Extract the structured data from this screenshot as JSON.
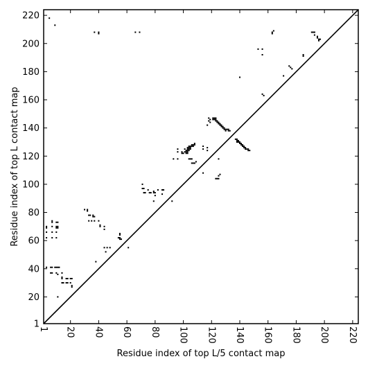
{
  "chart_data": {
    "type": "scatter",
    "title": "",
    "xlabel": "Residue index of top L/5 contact map",
    "ylabel": "Residue index of top L contact map",
    "xlim": [
      1,
      224
    ],
    "ylim": [
      1,
      224
    ],
    "x_ticks": [
      1,
      20,
      40,
      60,
      80,
      100,
      120,
      140,
      160,
      180,
      200,
      220
    ],
    "y_ticks": [
      1,
      20,
      40,
      60,
      80,
      100,
      120,
      140,
      160,
      180,
      200,
      220
    ],
    "x_tick_labels": [
      "1",
      "20",
      "40",
      "60",
      "80",
      "100",
      "120",
      "140",
      "160",
      "180",
      "200",
      "220"
    ],
    "y_tick_labels": [
      "1",
      "20",
      "40",
      "60",
      "80",
      "100",
      "120",
      "140",
      "160",
      "180",
      "200",
      "220"
    ],
    "grid": false,
    "diagonal": true,
    "marker": "square",
    "marker_color": "#000000",
    "upper_triangle": {
      "name": "",
      "points": [
        [
          5,
          218
        ],
        [
          9,
          213
        ],
        [
          37,
          208
        ],
        [
          40,
          208
        ],
        [
          40,
          207
        ],
        [
          66,
          208
        ],
        [
          69,
          208
        ],
        [
          153,
          196
        ],
        [
          156,
          196
        ],
        [
          156,
          192
        ],
        [
          163,
          208
        ],
        [
          163,
          207
        ],
        [
          164,
          209
        ],
        [
          171,
          177
        ],
        [
          175,
          184
        ],
        [
          176,
          183
        ],
        [
          177,
          182
        ],
        [
          185,
          192
        ],
        [
          185,
          191
        ],
        [
          191,
          208
        ],
        [
          192,
          208
        ],
        [
          193,
          208
        ],
        [
          193,
          206
        ],
        [
          195,
          205
        ],
        [
          195,
          204
        ],
        [
          196,
          203
        ],
        [
          197,
          203
        ],
        [
          196,
          202
        ],
        [
          156,
          164
        ],
        [
          157,
          163
        ],
        [
          140,
          176
        ],
        [
          118,
          147
        ],
        [
          118,
          145
        ],
        [
          119,
          146
        ],
        [
          121,
          147
        ],
        [
          121,
          146
        ],
        [
          122,
          147
        ],
        [
          122,
          146
        ],
        [
          123,
          147
        ],
        [
          123,
          146
        ],
        [
          123,
          145
        ],
        [
          124,
          145
        ],
        [
          124,
          144
        ],
        [
          125,
          144
        ],
        [
          125,
          143
        ],
        [
          126,
          143
        ],
        [
          126,
          142
        ],
        [
          127,
          142
        ],
        [
          127,
          141
        ],
        [
          128,
          141
        ],
        [
          128,
          140
        ],
        [
          129,
          140
        ],
        [
          129,
          139
        ],
        [
          130,
          139
        ],
        [
          130,
          138
        ],
        [
          131,
          139
        ],
        [
          132,
          139
        ],
        [
          119,
          144
        ],
        [
          117,
          142
        ],
        [
          132,
          138
        ],
        [
          133,
          138
        ],
        [
          138,
          131
        ],
        [
          139,
          131
        ],
        [
          138,
          130
        ],
        [
          139,
          130
        ],
        [
          140,
          130
        ],
        [
          140,
          129
        ],
        [
          141,
          129
        ],
        [
          141,
          128
        ],
        [
          142,
          128
        ],
        [
          142,
          127
        ],
        [
          143,
          127
        ],
        [
          143,
          126
        ],
        [
          144,
          126
        ],
        [
          144,
          125
        ],
        [
          145,
          125
        ],
        [
          146,
          125
        ],
        [
          147,
          124
        ],
        [
          146,
          124
        ],
        [
          137,
          132
        ],
        [
          138,
          132
        ]
      ]
    },
    "lower_triangle": {
      "name": "",
      "points": [
        [
          3,
          69
        ],
        [
          3,
          70
        ],
        [
          3,
          66
        ],
        [
          3,
          62
        ],
        [
          7,
          74
        ],
        [
          7,
          73
        ],
        [
          7,
          70
        ],
        [
          7,
          66
        ],
        [
          7,
          62
        ],
        [
          10,
          73
        ],
        [
          10,
          70
        ],
        [
          10,
          69
        ],
        [
          10,
          66
        ],
        [
          10,
          62
        ],
        [
          11,
          73
        ],
        [
          11,
          70
        ],
        [
          11,
          69
        ],
        [
          3,
          41
        ],
        [
          6,
          41
        ],
        [
          7,
          41
        ],
        [
          9,
          41
        ],
        [
          10,
          41
        ],
        [
          11,
          41
        ],
        [
          12,
          41
        ],
        [
          6,
          37
        ],
        [
          7,
          37
        ],
        [
          10,
          37
        ],
        [
          11,
          36
        ],
        [
          14,
          37
        ],
        [
          14,
          34
        ],
        [
          14,
          33
        ],
        [
          17,
          33
        ],
        [
          18,
          33
        ],
        [
          20,
          33
        ],
        [
          21,
          33
        ],
        [
          14,
          30
        ],
        [
          15,
          30
        ],
        [
          17,
          30
        ],
        [
          18,
          30
        ],
        [
          20,
          30
        ],
        [
          21,
          27
        ],
        [
          21,
          28
        ],
        [
          11,
          20
        ],
        [
          30,
          82
        ],
        [
          32,
          82
        ],
        [
          32,
          81
        ],
        [
          33,
          78
        ],
        [
          34,
          78
        ],
        [
          36,
          78
        ],
        [
          36,
          77
        ],
        [
          37,
          77
        ],
        [
          33,
          74
        ],
        [
          35,
          74
        ],
        [
          37,
          74
        ],
        [
          40,
          74
        ],
        [
          41,
          71
        ],
        [
          41,
          70
        ],
        [
          44,
          70
        ],
        [
          44,
          68
        ],
        [
          38,
          45
        ],
        [
          44,
          55
        ],
        [
          46,
          55
        ],
        [
          48,
          55
        ],
        [
          45,
          52
        ],
        [
          54,
          62
        ],
        [
          55,
          62
        ],
        [
          55,
          61
        ],
        [
          56,
          61
        ],
        [
          55,
          64
        ],
        [
          55,
          65
        ],
        [
          61,
          55
        ],
        [
          71,
          100
        ],
        [
          71,
          97
        ],
        [
          72,
          97
        ],
        [
          72,
          94
        ],
        [
          73,
          94
        ],
        [
          75,
          96
        ],
        [
          76,
          94
        ],
        [
          77,
          94
        ],
        [
          79,
          95
        ],
        [
          79,
          94
        ],
        [
          80,
          94
        ],
        [
          80,
          92
        ],
        [
          79,
          88
        ],
        [
          82,
          96
        ],
        [
          85,
          96
        ],
        [
          85,
          93
        ],
        [
          86,
          96
        ],
        [
          92,
          88
        ],
        [
          93,
          118
        ],
        [
          96,
          118
        ],
        [
          96,
          125
        ],
        [
          96,
          123
        ],
        [
          99,
          123
        ],
        [
          99,
          122
        ],
        [
          100,
          122
        ],
        [
          101,
          125
        ],
        [
          102,
          124
        ],
        [
          101,
          123
        ],
        [
          102,
          123
        ],
        [
          102,
          122
        ],
        [
          103,
          126
        ],
        [
          103,
          125
        ],
        [
          103,
          124
        ],
        [
          103,
          123
        ],
        [
          103,
          122
        ],
        [
          104,
          127
        ],
        [
          104,
          126
        ],
        [
          104,
          125
        ],
        [
          104,
          124
        ],
        [
          105,
          127
        ],
        [
          105,
          126
        ],
        [
          105,
          125
        ],
        [
          106,
          128
        ],
        [
          106,
          127
        ],
        [
          107,
          128
        ],
        [
          107,
          127
        ],
        [
          108,
          129
        ],
        [
          108,
          128
        ],
        [
          104,
          118
        ],
        [
          105,
          118
        ],
        [
          106,
          118
        ],
        [
          106,
          115
        ],
        [
          107,
          115
        ],
        [
          108,
          115
        ],
        [
          109,
          116
        ],
        [
          114,
          127
        ],
        [
          114,
          125
        ],
        [
          117,
          126
        ],
        [
          117,
          124
        ],
        [
          114,
          108
        ],
        [
          123,
          104
        ],
        [
          124,
          104
        ],
        [
          125,
          104
        ],
        [
          125,
          106
        ],
        [
          126,
          107
        ],
        [
          125,
          118
        ]
      ]
    }
  }
}
